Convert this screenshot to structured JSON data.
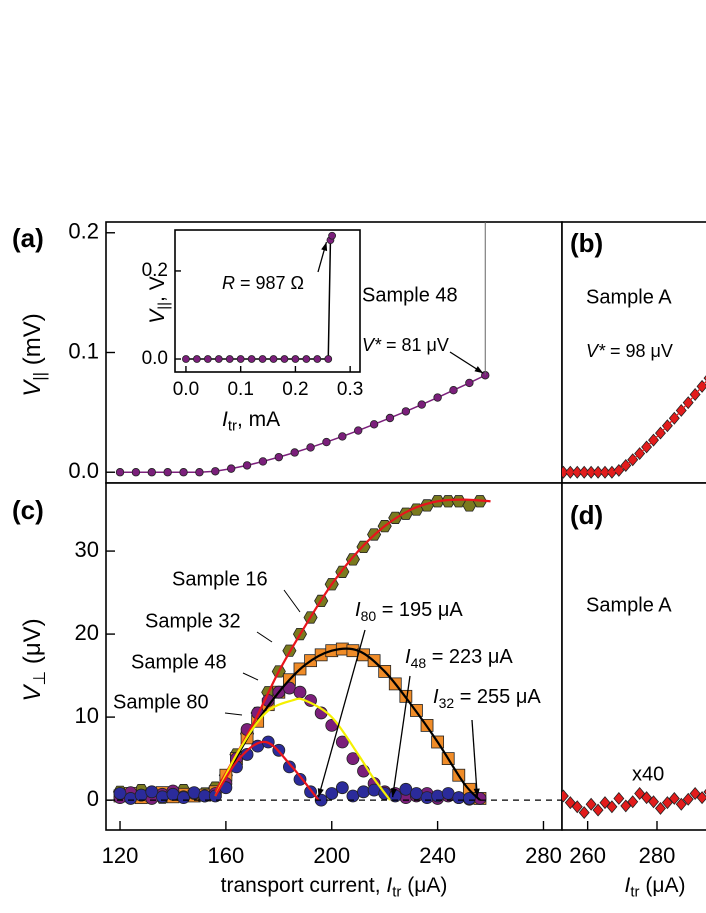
{
  "chart_data": [
    {
      "type": "scatter",
      "panel_label": "(a)",
      "ylabel": {
        "main": "V",
        "sub": "||",
        "rest": " (mV)"
      },
      "vstar": {
        "main": "V*",
        "rest": " = 81 μV"
      },
      "xlim": [
        114.7,
        287
      ],
      "ylim": [
        -0.009,
        0.209
      ],
      "yticks": [
        {
          "value": 0,
          "label": "0.0"
        },
        {
          "value": 0.1,
          "label": "0.1"
        },
        {
          "value": 0.2,
          "label": "0.2"
        }
      ],
      "series": [
        {
          "name": "Sample 48",
          "color": "#7b1f7b",
          "marker": "circle",
          "x": [
            120,
            126,
            132,
            138,
            144,
            150,
            156,
            162,
            168,
            174,
            180,
            186,
            192,
            198,
            204,
            210,
            216,
            222,
            228,
            234,
            240,
            246,
            252,
            258
          ],
          "values": [
            0,
            0,
            0,
            0,
            0,
            0,
            0.0008,
            0.003,
            0.0057,
            0.009,
            0.0126,
            0.0165,
            0.0207,
            0.0252,
            0.0299,
            0.0348,
            0.04,
            0.0453,
            0.0508,
            0.0565,
            0.0624,
            0.0685,
            0.0746,
            0.081
          ]
        }
      ]
    },
    {
      "type": "scatter",
      "inset": true,
      "xlabel": {
        "main": "I",
        "sub": "tr",
        "rest": ", mA"
      },
      "ylabel": {
        "main": "V",
        "sub": "||",
        "rest": ", V"
      },
      "annotation": {
        "main": "R",
        "rest": " = 987 Ω"
      },
      "xlim": [
        -0.02,
        0.318
      ],
      "ylim": [
        -0.0295,
        0.293
      ],
      "xticks": [
        {
          "value": 0,
          "label": "0.0"
        },
        0.1,
        0.2,
        0.3
      ],
      "yticks": [
        {
          "value": 0,
          "label": "0.0"
        },
        0.2
      ],
      "series": [
        {
          "color": "#7b1f7b",
          "marker": "circle",
          "x": [
            0,
            0.02,
            0.04,
            0.06,
            0.08,
            0.1,
            0.12,
            0.14,
            0.16,
            0.18,
            0.2,
            0.22,
            0.24,
            0.26,
            0.264,
            0.267
          ],
          "values": [
            0,
            0,
            0,
            0,
            0,
            0,
            0,
            0,
            0,
            0,
            0,
            0,
            0,
            0,
            0.27,
            0.28
          ]
        }
      ]
    },
    {
      "type": "scatter",
      "panel_label": "(b)",
      "annotation": "Sample A",
      "vstar": {
        "main": "V*",
        "rest": " = 98 μV"
      },
      "xlim": [
        252.6,
        295
      ],
      "ylim": [
        -0.009,
        0.209
      ],
      "series": [
        {
          "color": "#e21c1c",
          "marker": "diamond",
          "x": [
            253,
            255,
            257,
            259,
            261,
            263,
            265,
            267,
            269,
            271,
            273,
            275,
            277,
            279,
            281,
            283,
            285,
            287,
            289,
            291,
            293,
            295
          ],
          "values": [
            0,
            0,
            0,
            0,
            0,
            0,
            0,
            0,
            0.0015,
            0.0056,
            0.0104,
            0.0156,
            0.0211,
            0.0268,
            0.0327,
            0.0388,
            0.0451,
            0.0516,
            0.0581,
            0.0649,
            0.0717,
            0.0786
          ]
        }
      ]
    },
    {
      "type": "scatter",
      "panel_label": "(c)",
      "ylabel": {
        "main": "V",
        "sub": "⊥",
        "rest": " (μV)"
      },
      "xlabel": {
        "pre": "transport current,  ",
        "main": "I",
        "sub": "tr",
        "rest": " (μA)"
      },
      "xlim": [
        114.7,
        287
      ],
      "ylim": [
        -3.6,
        38.2
      ],
      "xticks": [
        120,
        160,
        200,
        240,
        280
      ],
      "yticks": [
        0,
        10,
        20,
        30
      ],
      "zero_line": true,
      "series": [
        {
          "name": "Sample 16",
          "color": "#7a7a1e",
          "marker": "hexagon",
          "x": [
            120,
            124,
            128,
            132,
            136,
            140,
            144,
            148,
            152,
            156,
            160,
            164,
            168,
            172,
            176,
            180,
            184,
            188,
            192,
            196,
            200,
            204,
            208,
            212,
            216,
            220,
            224,
            228,
            232,
            236,
            240,
            244,
            248,
            252,
            256
          ],
          "values": [
            1,
            0.5,
            1.2,
            0.8,
            0.3,
            1,
            1.2,
            0.6,
            0.8,
            1.5,
            3,
            5.5,
            8,
            10.5,
            13,
            15.5,
            18,
            20,
            22,
            24,
            26,
            27.5,
            29,
            30.5,
            32,
            33,
            34,
            34.5,
            35,
            35.5,
            36,
            36,
            36,
            35.5,
            36
          ],
          "fit": {
            "color": "#e8141c",
            "x": [
              156,
              170,
              180,
              190,
              200,
              210,
              220,
              230,
              240,
              250,
              260
            ],
            "values": [
              1,
              9,
              15.5,
              21,
              26,
              30,
              33,
              35,
              36,
              36.2,
              36
            ]
          }
        },
        {
          "name": "Sample 32",
          "color": "#f08c28",
          "marker": "square",
          "x": [
            120,
            124,
            128,
            132,
            136,
            140,
            144,
            148,
            152,
            156,
            160,
            164,
            168,
            172,
            176,
            180,
            184,
            188,
            192,
            196,
            200,
            204,
            208,
            212,
            216,
            220,
            224,
            228,
            232,
            236,
            240,
            244,
            248,
            252,
            256
          ],
          "values": [
            0.5,
            0.8,
            0.3,
            0.6,
            0.9,
            0.4,
            0.7,
            0.5,
            0.6,
            1,
            3,
            5,
            7.5,
            9.5,
            11.5,
            13,
            14.5,
            15.8,
            16.8,
            17.5,
            18,
            18.2,
            18,
            17.5,
            16.8,
            15.5,
            14,
            12.5,
            10.8,
            9,
            7,
            5,
            3,
            1.3,
            0.2
          ],
          "fit": {
            "color": "#000000",
            "x": [
              156,
              170,
              180,
              190,
              200,
              210,
              220,
              230,
              240,
              250,
              256
            ],
            "values": [
              0.5,
              8.5,
              13,
              16.3,
              18,
              18,
              15.5,
              11.5,
              7,
              2,
              0
            ]
          }
        },
        {
          "name": "Sample 48",
          "color": "#7b1f7b",
          "marker": "circle",
          "x": [
            120,
            124,
            128,
            132,
            136,
            140,
            144,
            148,
            152,
            156,
            160,
            164,
            168,
            172,
            176,
            180,
            184,
            188,
            192,
            196,
            200,
            204,
            208,
            212,
            216,
            220,
            224,
            228,
            232,
            236,
            240,
            244,
            248,
            252,
            256
          ],
          "values": [
            0.3,
            0.9,
            0.6,
            0.2,
            0.7,
            1.1,
            0.4,
            0.8,
            0.5,
            0.8,
            2,
            5,
            8.5,
            10.5,
            12,
            13,
            13.5,
            13,
            12,
            10.5,
            9,
            7,
            5,
            3.5,
            2,
            1,
            0.8,
            0.3,
            0.5,
            0.8,
            0.2,
            0.5,
            0.3,
            0.1,
            0.2
          ],
          "fit": {
            "color": "#f5f000",
            "x": [
              156,
              165,
              175,
              185,
              190,
              200,
              210,
              215,
              222
            ],
            "values": [
              0.5,
              6,
              10.5,
              12,
              12,
              10,
              5.5,
              3,
              0
            ]
          }
        },
        {
          "name": "Sample 80",
          "color": "#2b2b9b",
          "marker": "circle",
          "x": [
            120,
            124,
            128,
            132,
            136,
            140,
            144,
            148,
            152,
            156,
            160,
            164,
            168,
            172,
            176,
            180,
            184,
            188,
            192,
            196,
            200,
            204,
            208,
            212,
            216,
            220,
            224,
            228,
            232,
            236,
            240,
            244,
            248,
            252
          ],
          "values": [
            0.8,
            0.2,
            0.6,
            1,
            0.4,
            0.7,
            0.3,
            0.9,
            0.5,
            0.5,
            1.5,
            4,
            5.5,
            6.5,
            7,
            6,
            4,
            2.5,
            1,
            0,
            0.8,
            1.5,
            0.5,
            1,
            1.2,
            0.8,
            0.5,
            1.3,
            0.8,
            0.3,
            0.5,
            0.8,
            0.3,
            0.2
          ],
          "fit": {
            "color": "#e8141c",
            "x": [
              156,
              165,
              175,
              185,
              195
            ],
            "values": [
              0.5,
              5,
              7,
              4,
              0
            ]
          }
        }
      ],
      "thresholds": [
        {
          "main": "I",
          "sub": "80",
          "rest": " = 195 μA",
          "x": 195
        },
        {
          "main": "I",
          "sub": "48",
          "rest": " = 223 μA",
          "x": 223
        },
        {
          "main": "I",
          "sub": "32",
          "rest": " = 255 μA",
          "x": 255
        }
      ]
    },
    {
      "type": "scatter",
      "panel_label": "(d)",
      "annotation": "Sample A",
      "scale_note": "x40",
      "xlabel": {
        "main": "I",
        "sub": "tr",
        "rest": " (μA)"
      },
      "xlim": [
        252.6,
        295
      ],
      "ylim": [
        -3.6,
        38.2
      ],
      "xticks": [
        260,
        280
      ],
      "series": [
        {
          "color": "#e21c1c",
          "marker": "diamond",
          "x": [
            253,
            255,
            257,
            259,
            261,
            263,
            265,
            267,
            269,
            271,
            273,
            275,
            277,
            279,
            281,
            283,
            285,
            287,
            289,
            291,
            293,
            295
          ],
          "values": [
            0.5,
            -0.3,
            -0.8,
            -1.5,
            -0.5,
            -1.2,
            -0.3,
            -0.8,
            0.2,
            -0.7,
            -0.2,
            0.8,
            0.3,
            -0.2,
            -1,
            -0.3,
            0.2,
            -0.5,
            0.1,
            0.8,
            0.3,
            1
          ]
        }
      ]
    }
  ]
}
